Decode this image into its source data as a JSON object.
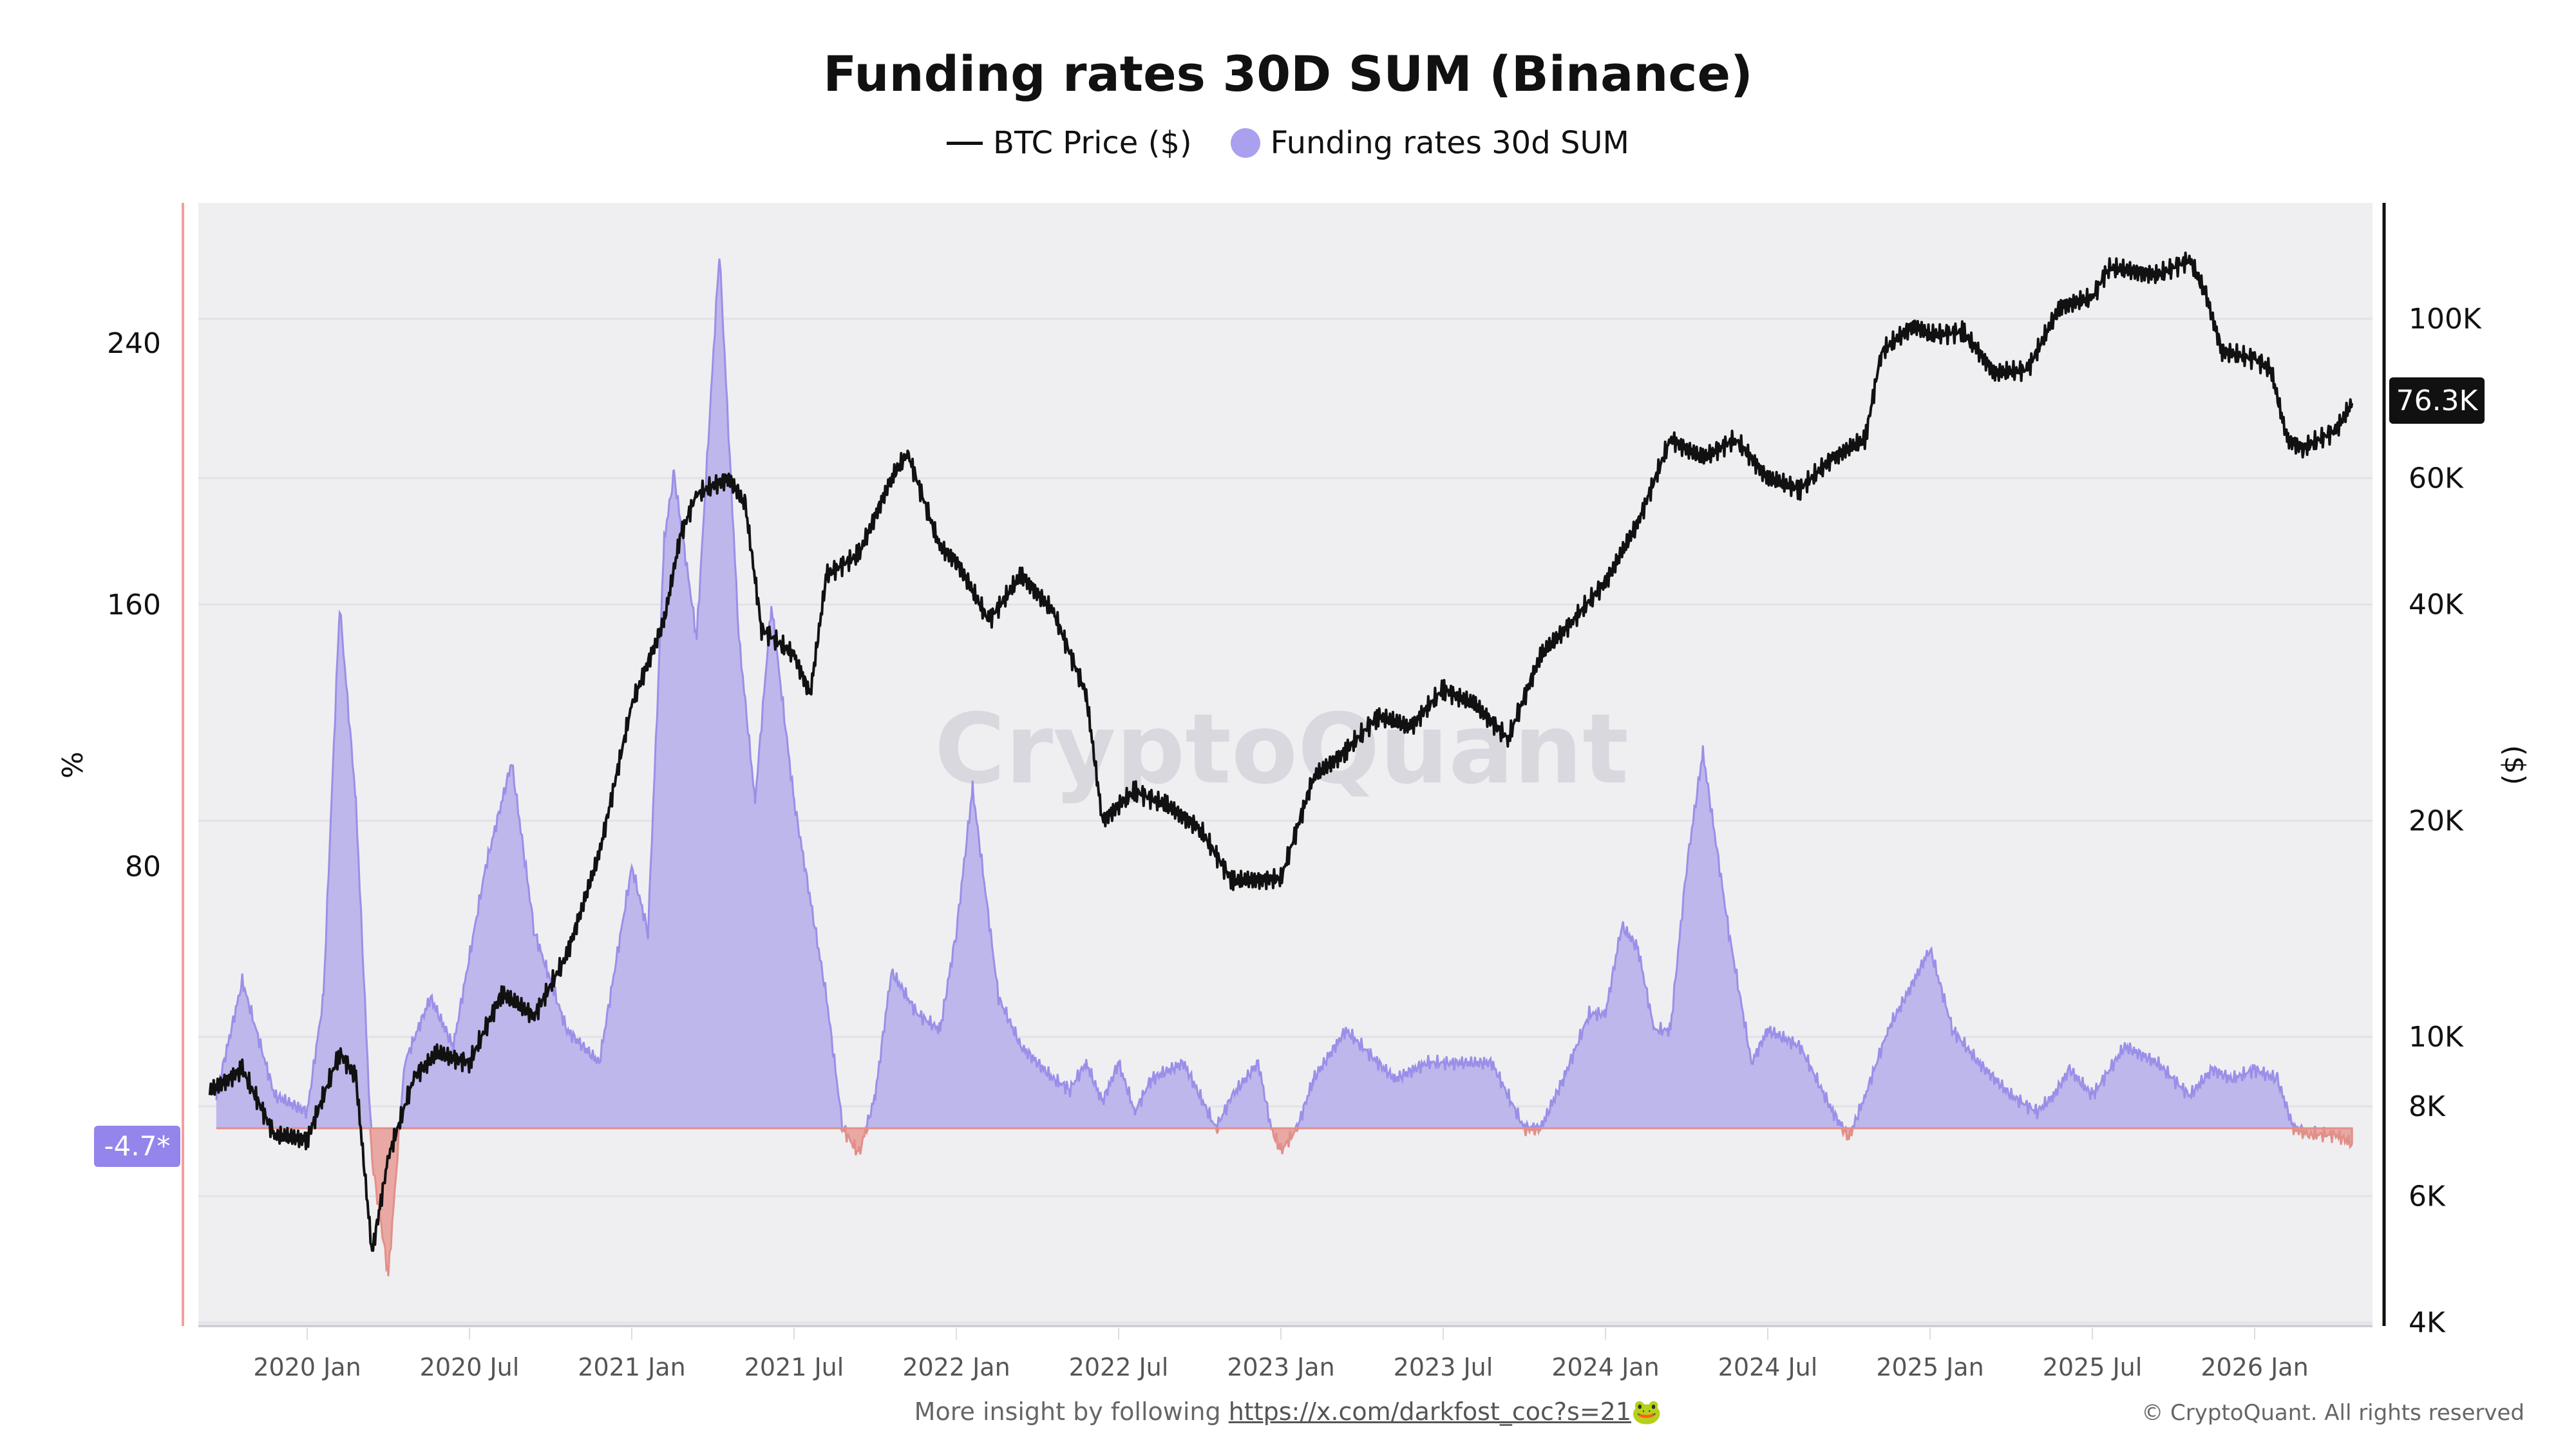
{
  "chart_data": {
    "type": "line",
    "title": "Funding rates 30D SUM (Binance)",
    "legend": [
      "BTC Price ($)",
      "Funding rates 30d SUM"
    ],
    "legend_placement": "top-center",
    "ylabel_left": "%",
    "ylabel_right": "($)",
    "left_ticks": [
      "240",
      "160",
      "80"
    ],
    "left_tick_values": [
      240,
      160,
      80
    ],
    "left_ylim": [
      -60,
      283
    ],
    "right_ticks": [
      "100K",
      "60K",
      "40K",
      "20K",
      "10K",
      "8K",
      "6K",
      "4K"
    ],
    "right_tick_values": [
      100000,
      60000,
      40000,
      20000,
      10000,
      8000,
      6000,
      4000
    ],
    "right_scale": "log",
    "right_ylim": [
      4000,
      160000
    ],
    "x_ticks": [
      "2020 Jan",
      "2020 Jul",
      "2021 Jan",
      "2021 Jul",
      "2022 Jan",
      "2022 Jul",
      "2023 Jan",
      "2023 Jul",
      "2024 Jan",
      "2024 Jul",
      "2025 Jan",
      "2025 Jul",
      "2026 Jan"
    ],
    "x_tick_values": [
      2020.0,
      2020.5,
      2021.0,
      2021.5,
      2022.0,
      2022.5,
      2023.0,
      2023.5,
      2024.0,
      2024.5,
      2025.0,
      2025.5,
      2026.0
    ],
    "current_funding_label": "-4.7*",
    "current_funding_value": -4.7,
    "current_price_label": "76.3K",
    "current_price_value": 76300,
    "series": [
      {
        "name": "BTC Price ($)",
        "x": [
          2019.7,
          2019.8,
          2019.9,
          2020.0,
          2020.1,
          2020.15,
          2020.2,
          2020.25,
          2020.33,
          2020.4,
          2020.5,
          2020.6,
          2020.7,
          2020.8,
          2020.9,
          2021.0,
          2021.1,
          2021.15,
          2021.2,
          2021.3,
          2021.35,
          2021.4,
          2021.5,
          2021.55,
          2021.6,
          2021.7,
          2021.8,
          2021.85,
          2021.95,
          2022.0,
          2022.1,
          2022.2,
          2022.3,
          2022.4,
          2022.45,
          2022.55,
          2022.65,
          2022.75,
          2022.85,
          2023.0,
          2023.1,
          2023.2,
          2023.3,
          2023.4,
          2023.5,
          2023.6,
          2023.7,
          2023.8,
          2023.9,
          2024.0,
          2024.1,
          2024.2,
          2024.3,
          2024.4,
          2024.5,
          2024.6,
          2024.7,
          2024.8,
          2024.85,
          2024.95,
          2025.0,
          2025.1,
          2025.2,
          2025.3,
          2025.4,
          2025.5,
          2025.55,
          2025.7,
          2025.8,
          2025.85,
          2025.9,
          2026.0,
          2026.05,
          2026.1,
          2026.15,
          2026.25,
          2026.3
        ],
        "values": [
          8400,
          9000,
          7300,
          7200,
          9500,
          8800,
          5000,
          6800,
          8800,
          9500,
          9200,
          11500,
          10700,
          13000,
          18000,
          29000,
          38000,
          50000,
          57000,
          60000,
          55000,
          37000,
          34000,
          30000,
          44000,
          47000,
          60000,
          65000,
          48000,
          46000,
          38000,
          44000,
          39000,
          30000,
          20000,
          22000,
          21000,
          19500,
          16500,
          16600,
          23000,
          25000,
          28000,
          27000,
          30500,
          29000,
          26000,
          34000,
          38000,
          43000,
          52000,
          68000,
          64000,
          68000,
          60000,
          58000,
          64000,
          68000,
          90000,
          98000,
          95000,
          96000,
          84000,
          85000,
          104000,
          107000,
          118000,
          115000,
          121000,
          108000,
          90000,
          88000,
          85000,
          68000,
          66000,
          70000,
          76300
        ]
      },
      {
        "name": "Funding rates 30d SUM",
        "x": [
          2019.72,
          2019.8,
          2019.9,
          2020.0,
          2020.05,
          2020.1,
          2020.15,
          2020.2,
          2020.25,
          2020.3,
          2020.38,
          2020.45,
          2020.55,
          2020.63,
          2020.7,
          2020.8,
          2020.9,
          2021.0,
          2021.05,
          2021.1,
          2021.13,
          2021.2,
          2021.27,
          2021.33,
          2021.38,
          2021.43,
          2021.5,
          2021.6,
          2021.65,
          2021.7,
          2021.75,
          2021.8,
          2021.88,
          2021.95,
          2022.0,
          2022.05,
          2022.13,
          2022.2,
          2022.3,
          2022.35,
          2022.4,
          2022.45,
          2022.5,
          2022.55,
          2022.6,
          2022.7,
          2022.8,
          2022.85,
          2022.93,
          2022.97,
          2023.0,
          2023.05,
          2023.1,
          2023.2,
          2023.3,
          2023.35,
          2023.45,
          2023.55,
          2023.65,
          2023.75,
          2023.8,
          2023.87,
          2023.95,
          2024.0,
          2024.05,
          2024.1,
          2024.15,
          2024.2,
          2024.25,
          2024.3,
          2024.38,
          2024.45,
          2024.5,
          2024.6,
          2024.7,
          2024.75,
          2024.8,
          2024.87,
          2024.95,
          2025.0,
          2025.07,
          2025.15,
          2025.25,
          2025.33,
          2025.38,
          2025.43,
          2025.5,
          2025.6,
          2025.7,
          2025.8,
          2025.87,
          2025.93,
          2026.0,
          2026.07,
          2026.12,
          2026.17,
          2026.25,
          2026.3
        ],
        "values": [
          10,
          45,
          10,
          5,
          40,
          160,
          100,
          -10,
          -45,
          20,
          40,
          25,
          80,
          112,
          60,
          30,
          20,
          80,
          60,
          180,
          200,
          150,
          268,
          150,
          100,
          160,
          100,
          40,
          0,
          -8,
          10,
          48,
          35,
          30,
          60,
          104,
          40,
          25,
          15,
          12,
          20,
          8,
          20,
          5,
          15,
          20,
          0,
          10,
          20,
          0,
          -7,
          0,
          15,
          30,
          20,
          15,
          20,
          20,
          20,
          0,
          0,
          15,
          35,
          35,
          62,
          55,
          30,
          30,
          80,
          115,
          60,
          20,
          30,
          25,
          5,
          -3,
          10,
          30,
          45,
          55,
          30,
          20,
          10,
          5,
          10,
          18,
          10,
          25,
          20,
          10,
          18,
          15,
          18,
          15,
          0,
          -2,
          -2,
          -4.7
        ]
      }
    ]
  },
  "watermark": "CryptoQuant",
  "footer": {
    "prefix": "More insight by following ",
    "link": "https://x.com/darkfost_coc?s=21",
    "emoji": "🐸",
    "copyright": "© CryptoQuant. All rights reserved"
  },
  "colors": {
    "funding_pos": "#b9b3ea",
    "funding_pos_line": "#9a8fe8",
    "funding_neg": "#e9a8a3",
    "price": "#111111",
    "badge": "#9385ec"
  }
}
